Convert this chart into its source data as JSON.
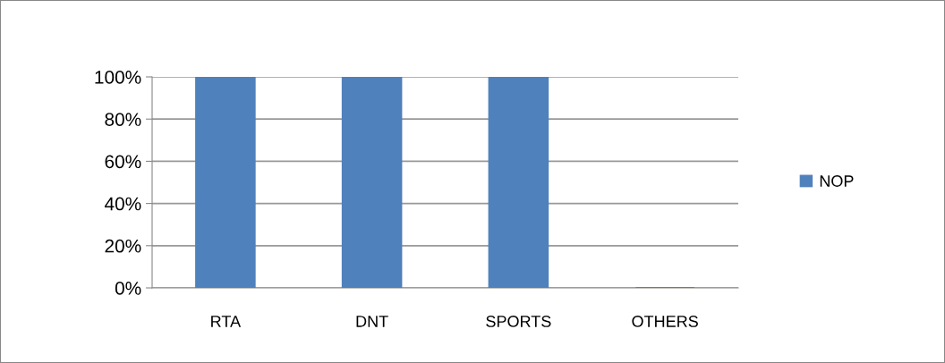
{
  "chart_data": {
    "type": "bar",
    "categories": [
      "RTA",
      "DNT",
      "SPORTS",
      "OTHERS"
    ],
    "series": [
      {
        "name": "NOP",
        "color": "#4f81bd",
        "values": [
          100,
          100,
          100,
          0
        ]
      }
    ],
    "ylim": [
      0,
      100
    ],
    "yticks": [
      {
        "value": 0,
        "label": "0%"
      },
      {
        "value": 20,
        "label": "20%"
      },
      {
        "value": 40,
        "label": "40%"
      },
      {
        "value": 60,
        "label": "60%"
      },
      {
        "value": 80,
        "label": "80%"
      },
      {
        "value": 100,
        "label": "100%"
      }
    ],
    "grid": "y",
    "legend": "right"
  }
}
